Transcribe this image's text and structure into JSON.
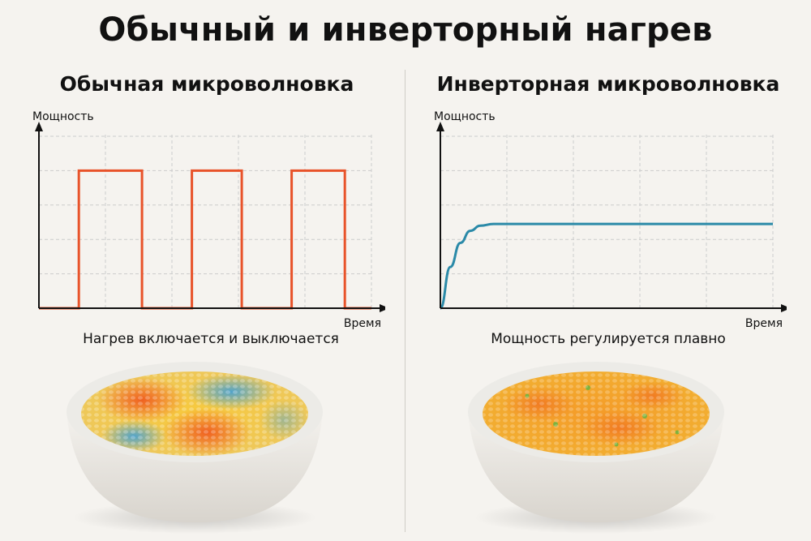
{
  "title": "Обычный и инверторный нагрев",
  "left": {
    "heading": "Обычная микроволновка",
    "caption": "Нагрев включается и выключается",
    "chart": {
      "ylabel": "Мощность",
      "xlabel": "Время"
    }
  },
  "right": {
    "heading": "Инверторная микроволновка",
    "caption": "Мощность регулируется плавно",
    "chart": {
      "ylabel": "Мощность",
      "xlabel": "Время"
    }
  },
  "colors": {
    "conventional_line": "#e8532a",
    "inverter_line": "#2b8aa8",
    "grid": "#cccccc",
    "hot": "#f06a1f",
    "cold": "#4aa6d8",
    "food_base": "#f3b637"
  },
  "chart_data": [
    {
      "type": "line",
      "title": "Обычная микроволновка",
      "xlabel": "Время",
      "ylabel": "Мощность",
      "ylim": [
        0,
        5
      ],
      "xlim": [
        0,
        10
      ],
      "grid": true,
      "series": [
        {
          "x": [
            0,
            1.2,
            1.2,
            3.1,
            3.1,
            4.6,
            4.6,
            6.1,
            6.1,
            7.6,
            7.6,
            9.2,
            9.2,
            10
          ],
          "values": [
            0,
            0,
            4,
            4,
            0,
            0,
            4,
            4,
            0,
            0,
            4,
            4,
            0,
            0
          ]
        }
      ]
    },
    {
      "type": "line",
      "title": "Инверторная микроволновка",
      "xlabel": "Время",
      "ylabel": "Мощность",
      "ylim": [
        0,
        5
      ],
      "xlim": [
        0,
        10
      ],
      "grid": true,
      "series": [
        {
          "x": [
            0,
            0.3,
            0.6,
            0.9,
            1.2,
            1.6,
            2,
            10
          ],
          "values": [
            0,
            1.2,
            1.9,
            2.25,
            2.4,
            2.45,
            2.45,
            2.45
          ]
        }
      ]
    }
  ]
}
